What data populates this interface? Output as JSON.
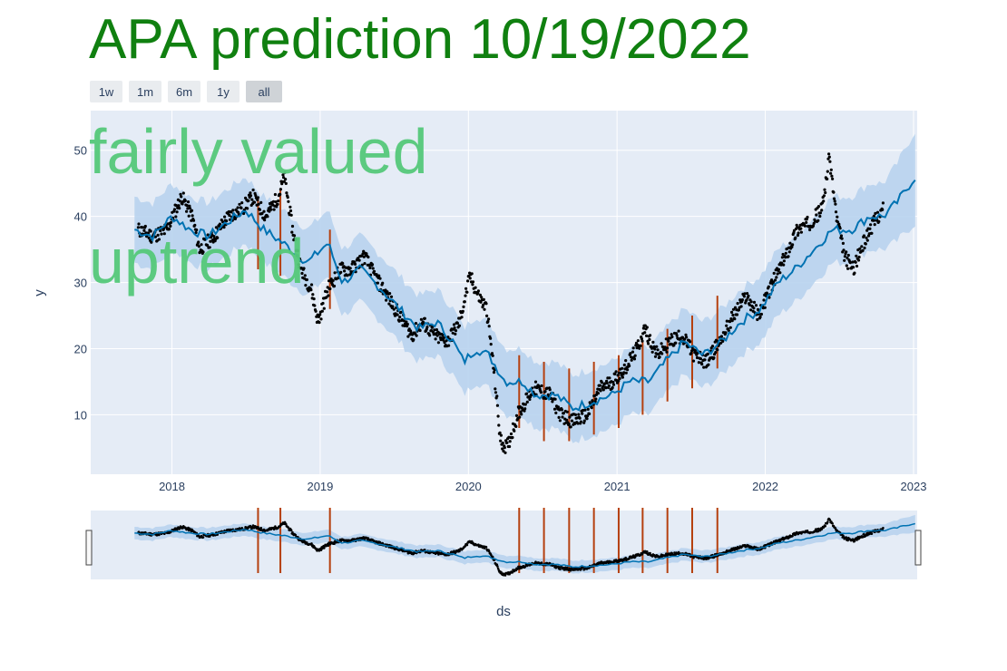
{
  "chart_data": {
    "type": "scatter",
    "title": "APA prediction 10/19/2022",
    "xlabel": "ds",
    "ylabel": "y",
    "x_range": [
      "2017-06-15",
      "2023-01-10"
    ],
    "y_range": [
      1,
      56
    ],
    "x_ticks": [
      {
        "date": "2018-01-01",
        "label": "2018"
      },
      {
        "date": "2019-01-01",
        "label": "2019"
      },
      {
        "date": "2020-01-01",
        "label": "2020"
      },
      {
        "date": "2021-01-01",
        "label": "2021"
      },
      {
        "date": "2022-01-01",
        "label": "2022"
      },
      {
        "date": "2023-01-01",
        "label": "2023"
      }
    ],
    "y_ticks": [
      10,
      20,
      30,
      40,
      50
    ],
    "grid": true,
    "annotations": [
      "fairly valued",
      "uptrend"
    ],
    "range_buttons": [
      {
        "label": "1w",
        "active": false
      },
      {
        "label": "1m",
        "active": false
      },
      {
        "label": "6m",
        "active": false
      },
      {
        "label": "1y",
        "active": false
      },
      {
        "label": "all",
        "active": true
      }
    ],
    "actual": {
      "points": [
        [
          "2017-10-10",
          38
        ],
        [
          "2017-11-15",
          37
        ],
        [
          "2017-12-20",
          38
        ],
        [
          "2018-01-25",
          43
        ],
        [
          "2018-02-20",
          40
        ],
        [
          "2018-03-10",
          35
        ],
        [
          "2018-04-15",
          37
        ],
        [
          "2018-05-20",
          40
        ],
        [
          "2018-06-20",
          41
        ],
        [
          "2018-07-20",
          43
        ],
        [
          "2018-08-20",
          40
        ],
        [
          "2018-09-20",
          43
        ],
        [
          "2018-10-05",
          46
        ],
        [
          "2018-10-25",
          38
        ],
        [
          "2018-11-15",
          32
        ],
        [
          "2018-12-10",
          29
        ],
        [
          "2018-12-27",
          24
        ],
        [
          "2019-01-20",
          29
        ],
        [
          "2019-02-20",
          32
        ],
        [
          "2019-03-20",
          32
        ],
        [
          "2019-04-20",
          34
        ],
        [
          "2019-05-15",
          31
        ],
        [
          "2019-06-15",
          28
        ],
        [
          "2019-07-15",
          25
        ],
        [
          "2019-08-15",
          22
        ],
        [
          "2019-09-10",
          24
        ],
        [
          "2019-10-10",
          22
        ],
        [
          "2019-11-10",
          21
        ],
        [
          "2019-12-10",
          24
        ],
        [
          "2020-01-05",
          31
        ],
        [
          "2020-01-25",
          28
        ],
        [
          "2020-02-15",
          26
        ],
        [
          "2020-03-05",
          16
        ],
        [
          "2020-03-20",
          6
        ],
        [
          "2020-04-05",
          5
        ],
        [
          "2020-05-01",
          10
        ],
        [
          "2020-06-10",
          14
        ],
        [
          "2020-07-20",
          13
        ],
        [
          "2020-08-15",
          10
        ],
        [
          "2020-09-15",
          9
        ],
        [
          "2020-10-20",
          10
        ],
        [
          "2020-11-20",
          14
        ],
        [
          "2020-12-20",
          15
        ],
        [
          "2021-01-20",
          17
        ],
        [
          "2021-02-20",
          20
        ],
        [
          "2021-03-10",
          23
        ],
        [
          "2021-04-10",
          19
        ],
        [
          "2021-05-10",
          21
        ],
        [
          "2021-06-10",
          22
        ],
        [
          "2021-07-10",
          19
        ],
        [
          "2021-08-10",
          18
        ],
        [
          "2021-09-10",
          21
        ],
        [
          "2021-10-15",
          25
        ],
        [
          "2021-11-15",
          28
        ],
        [
          "2021-12-15",
          25
        ],
        [
          "2022-01-20",
          30
        ],
        [
          "2022-02-20",
          34
        ],
        [
          "2022-03-20",
          38
        ],
        [
          "2022-04-20",
          39
        ],
        [
          "2022-05-20",
          41
        ],
        [
          "2022-06-08",
          49
        ],
        [
          "2022-06-25",
          40
        ],
        [
          "2022-07-15",
          34
        ],
        [
          "2022-08-05",
          32
        ],
        [
          "2022-08-25",
          35
        ],
        [
          "2022-09-15",
          38
        ],
        [
          "2022-10-05",
          40
        ],
        [
          "2022-10-18",
          41
        ]
      ]
    },
    "forecast": {
      "points": [
        [
          "2017-10-01",
          38
        ],
        [
          "2017-11-15",
          37
        ],
        [
          "2018-01-01",
          40
        ],
        [
          "2018-02-15",
          38
        ],
        [
          "2018-04-01",
          37
        ],
        [
          "2018-05-15",
          39
        ],
        [
          "2018-07-01",
          41
        ],
        [
          "2018-08-15",
          38
        ],
        [
          "2018-10-01",
          36
        ],
        [
          "2018-12-01",
          33
        ],
        [
          "2019-01-20",
          36
        ],
        [
          "2019-02-25",
          30
        ],
        [
          "2019-04-10",
          32
        ],
        [
          "2019-06-01",
          29
        ],
        [
          "2019-07-15",
          26
        ],
        [
          "2019-09-01",
          23
        ],
        [
          "2019-10-15",
          24
        ],
        [
          "2019-11-25",
          21
        ],
        [
          "2019-12-20",
          18
        ],
        [
          "2020-01-20",
          20
        ],
        [
          "2020-02-20",
          19
        ],
        [
          "2020-04-01",
          15
        ],
        [
          "2020-05-15",
          15
        ],
        [
          "2020-06-15",
          13
        ],
        [
          "2020-08-01",
          13
        ],
        [
          "2020-09-15",
          11
        ],
        [
          "2020-11-01",
          12
        ],
        [
          "2020-12-20",
          13
        ],
        [
          "2021-02-01",
          15
        ],
        [
          "2021-03-20",
          15
        ],
        [
          "2021-05-01",
          18
        ],
        [
          "2021-06-15",
          21
        ],
        [
          "2021-08-01",
          19
        ],
        [
          "2021-09-15",
          21
        ],
        [
          "2021-11-01",
          24
        ],
        [
          "2021-12-20",
          26
        ],
        [
          "2022-02-01",
          30
        ],
        [
          "2022-03-15",
          32
        ],
        [
          "2022-05-01",
          35
        ],
        [
          "2022-06-15",
          38
        ],
        [
          "2022-08-01",
          38
        ],
        [
          "2022-09-15",
          40
        ],
        [
          "2022-10-19",
          40
        ],
        [
          "2022-11-20",
          42
        ],
        [
          "2023-01-05",
          46
        ]
      ],
      "band_half_width": 5
    },
    "changepoints": [
      {
        "date": "2018-08-01",
        "low": 32,
        "high": 43
      },
      {
        "date": "2018-09-25",
        "low": 31,
        "high": 44
      },
      {
        "date": "2019-01-25",
        "low": 26,
        "high": 38
      },
      {
        "date": "2020-05-05",
        "low": 8,
        "high": 19
      },
      {
        "date": "2020-07-05",
        "low": 6,
        "high": 18
      },
      {
        "date": "2020-09-05",
        "low": 6,
        "high": 17
      },
      {
        "date": "2020-11-05",
        "low": 7,
        "high": 18
      },
      {
        "date": "2021-01-05",
        "low": 8,
        "high": 19
      },
      {
        "date": "2021-03-05",
        "low": 10,
        "high": 21
      },
      {
        "date": "2021-05-05",
        "low": 12,
        "high": 23
      },
      {
        "date": "2021-07-05",
        "low": 14,
        "high": 25
      },
      {
        "date": "2021-09-05",
        "low": 17,
        "high": 28
      }
    ],
    "colors": {
      "background": "#e5ecf6",
      "grid": "#ffffff",
      "actual": "#000000",
      "forecast": "#0072b2",
      "band": "#b8d3ee",
      "changepoint": "#b5400f",
      "title": "#108010",
      "annotation": "#55c97a"
    }
  }
}
